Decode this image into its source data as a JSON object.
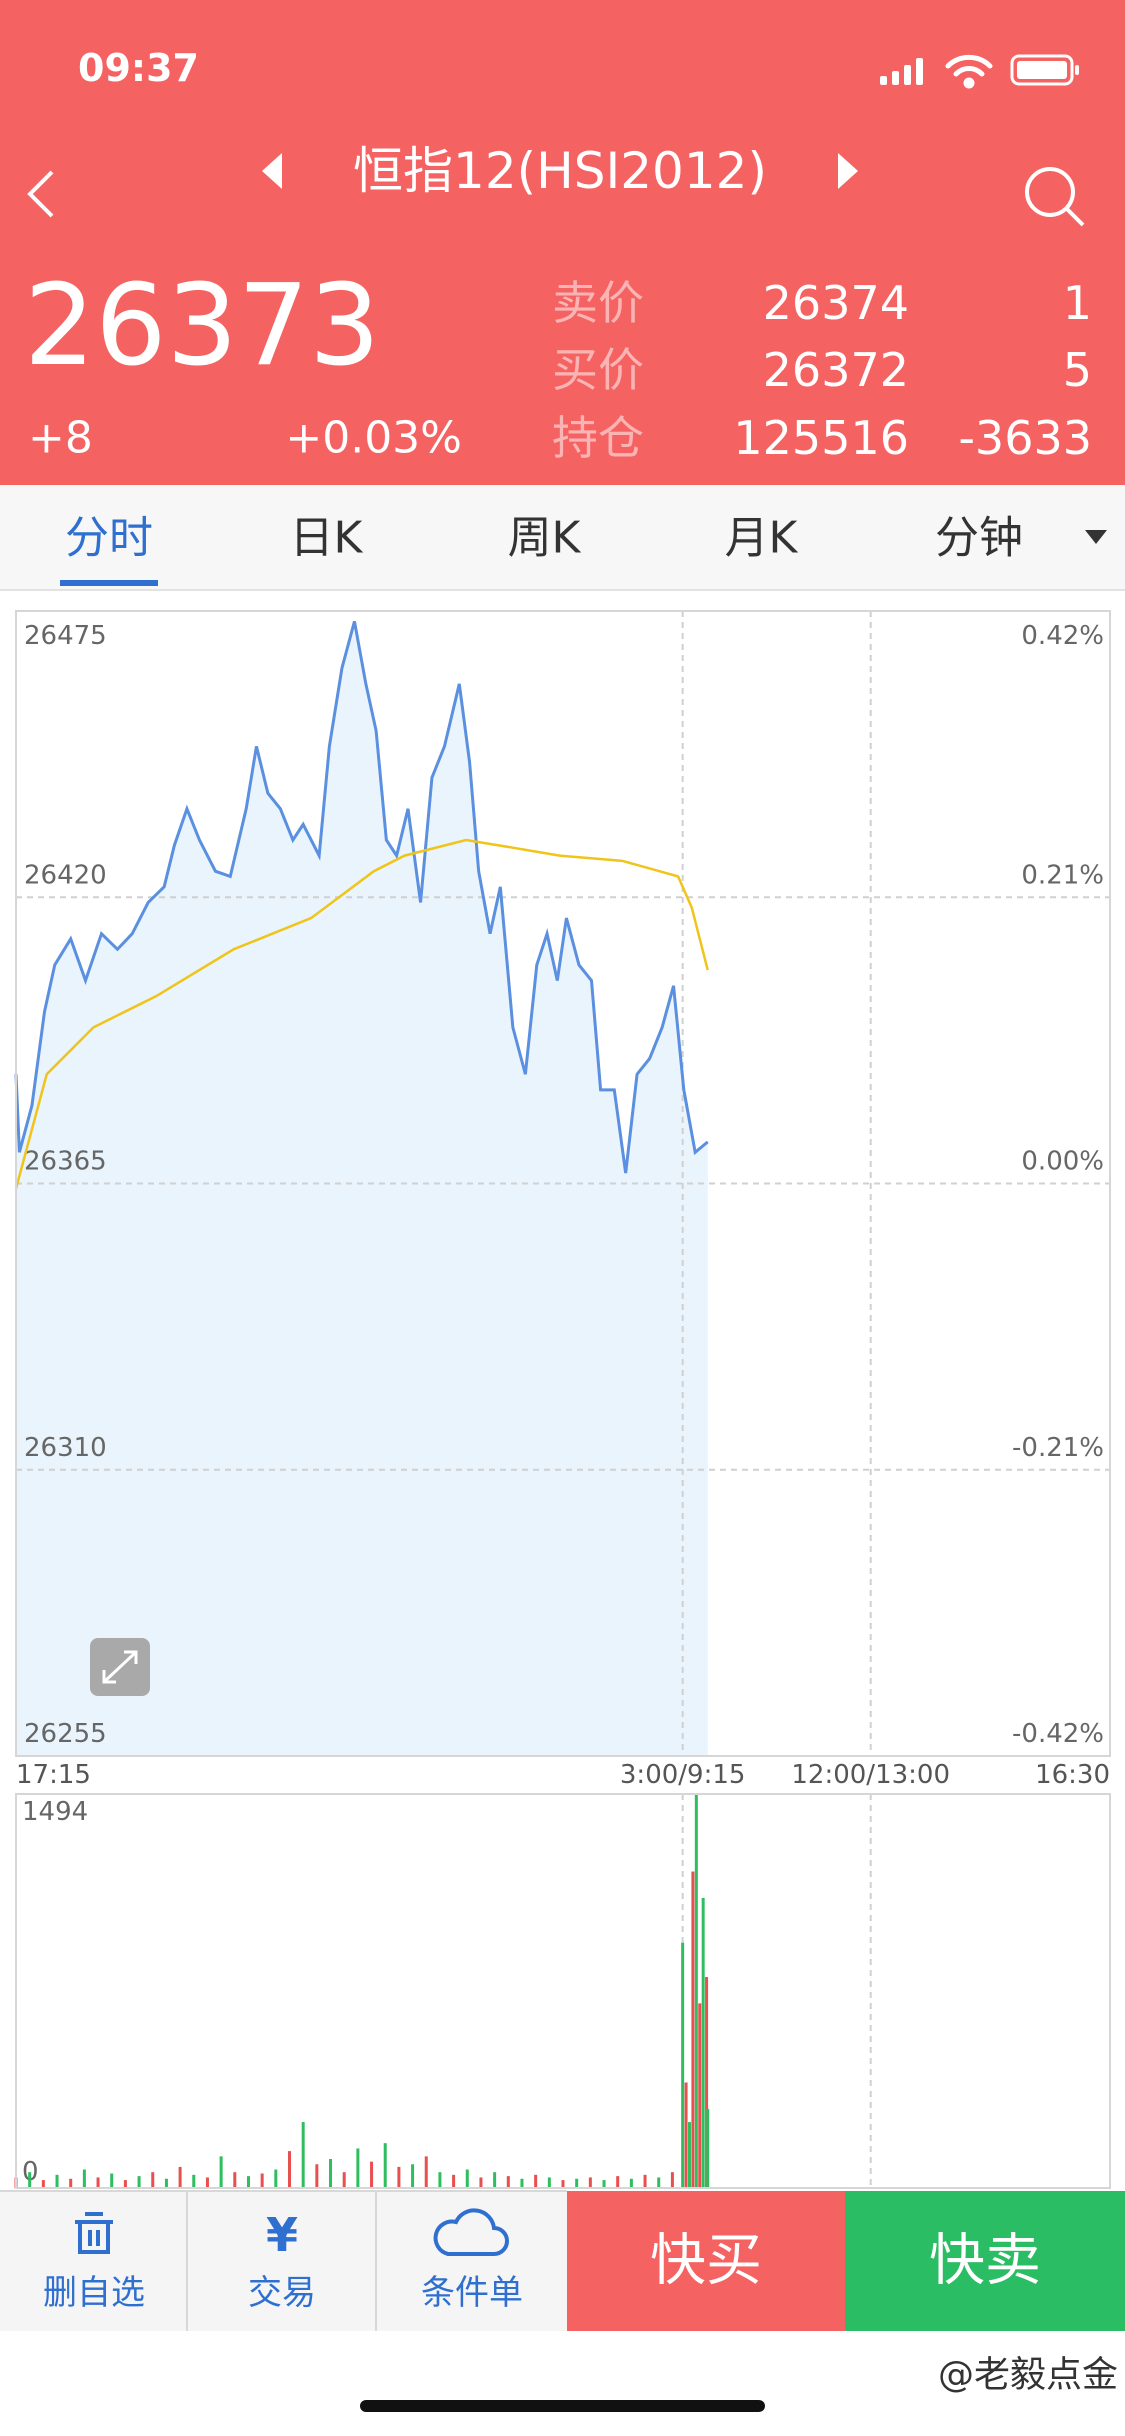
{
  "status_bar": {
    "time": "09:37"
  },
  "header": {
    "title": "恒指12(HSI2012)",
    "price": "26373",
    "change": "+8",
    "change_percent": "+0.03%",
    "quotes": [
      {
        "label": "卖价",
        "price": "26374",
        "qty": "1"
      },
      {
        "label": "买价",
        "price": "26372",
        "qty": "5"
      },
      {
        "label": "持仓",
        "price": "125516",
        "qty": "-3633"
      }
    ]
  },
  "tabs": [
    "分时",
    "日K",
    "周K",
    "月K",
    "分钟"
  ],
  "chart_data": [
    {
      "type": "line",
      "xlim": [
        0,
        960
      ],
      "xticks": [
        {
          "value": 0,
          "label": "17:15"
        },
        {
          "value": 585,
          "label": "3:00/9:15"
        },
        {
          "value": 750,
          "label": "12:00/13:00"
        },
        {
          "value": 960,
          "label": "16:30"
        }
      ],
      "ylim": [
        26255,
        26475
      ],
      "yticks": [
        26475,
        26420,
        26365,
        26310,
        26255
      ],
      "y2lim": [
        -0.42,
        0.42
      ],
      "y2ticks": [
        {
          "value": 0.42,
          "label": "0.42%"
        },
        {
          "value": 0.21,
          "label": "0.21%"
        },
        {
          "value": 0,
          "label": "0.00%"
        },
        {
          "value": -0.21,
          "label": "-0.21%"
        },
        {
          "value": -0.42,
          "label": "-0.42%"
        }
      ],
      "grid": true,
      "area_color": "#e9f4fc",
      "series": [
        {
          "color": "#5b8fe0",
          "x": [
            0,
            3,
            14,
            25,
            34,
            48,
            61,
            75,
            89,
            102,
            116,
            130,
            139,
            150,
            161,
            175,
            188,
            202,
            211,
            221,
            232,
            243,
            252,
            266,
            275,
            286,
            297,
            307,
            316,
            325,
            334,
            344,
            355,
            365,
            376,
            389,
            398,
            406,
            416,
            425,
            436,
            447,
            457,
            466,
            475,
            483,
            494,
            505,
            513,
            525,
            535,
            545,
            556,
            567,
            577,
            586,
            596,
            607
          ],
          "values": [
            26386,
            26371,
            26380,
            26398,
            26407,
            26412,
            26404,
            26413,
            26410,
            26413,
            26419,
            26422,
            26430,
            26437,
            26431,
            26425,
            26424,
            26437,
            26449,
            26440,
            26437,
            26431,
            26434,
            26428,
            26449,
            26464,
            26473,
            26461,
            26452,
            26431,
            26428,
            26437,
            26419,
            26443,
            26449,
            26461,
            26446,
            26425,
            26413,
            26422,
            26395,
            26386,
            26407,
            26413,
            26404,
            26416,
            26407,
            26404,
            26383,
            26383,
            26367,
            26386,
            26389,
            26395,
            26403,
            26383,
            26371,
            26373
          ]
        },
        {
          "color": "#f0c419",
          "x": [
            0,
            27,
            68,
            123,
            191,
            259,
            314,
            341,
            395,
            423,
            477,
            532,
            581,
            593,
            607
          ],
          "values": [
            26364,
            26386,
            26395,
            26401,
            26410,
            26416,
            26425,
            26428,
            26431,
            26430,
            26428,
            26427,
            26424,
            26418,
            26406
          ]
        }
      ]
    },
    {
      "type": "bar",
      "xlim": [
        0,
        960
      ],
      "xticks": [
        585,
        750
      ],
      "ylim": [
        0,
        1494
      ],
      "yticks": [
        1494,
        0
      ],
      "series": [
        {
          "color": "#e8504f",
          "x": [
            0,
            24,
            48,
            72,
            96,
            120,
            144,
            168,
            192,
            216,
            240,
            264,
            288,
            312,
            336,
            360,
            384,
            408,
            432,
            456,
            480,
            504,
            528,
            552,
            576,
            588,
            594,
            600,
            606
          ],
          "values": [
            40,
            30,
            35,
            40,
            30,
            60,
            80,
            40,
            60,
            55,
            140,
            90,
            60,
            100,
            80,
            120,
            50,
            40,
            45,
            50,
            30,
            40,
            45,
            50,
            60,
            400,
            1200,
            700,
            800
          ]
        },
        {
          "color": "#2ebd5f",
          "x": [
            12,
            36,
            60,
            84,
            108,
            132,
            156,
            180,
            204,
            228,
            252,
            276,
            300,
            324,
            348,
            372,
            396,
            420,
            444,
            468,
            492,
            516,
            540,
            564,
            585,
            591,
            597,
            603,
            607
          ],
          "values": [
            60,
            50,
            70,
            55,
            45,
            35,
            50,
            120,
            45,
            70,
            250,
            110,
            150,
            170,
            90,
            60,
            70,
            60,
            35,
            40,
            35,
            30,
            35,
            40,
            930,
            250,
            1494,
            1100,
            300
          ]
        }
      ]
    }
  ],
  "toolbar": {
    "items": [
      {
        "label": "删自选"
      },
      {
        "icon": "¥",
        "label": "交易"
      },
      {
        "label": "条件单"
      }
    ],
    "buy": "快买",
    "sell": "快卖"
  },
  "watermark": "@老毅点金"
}
